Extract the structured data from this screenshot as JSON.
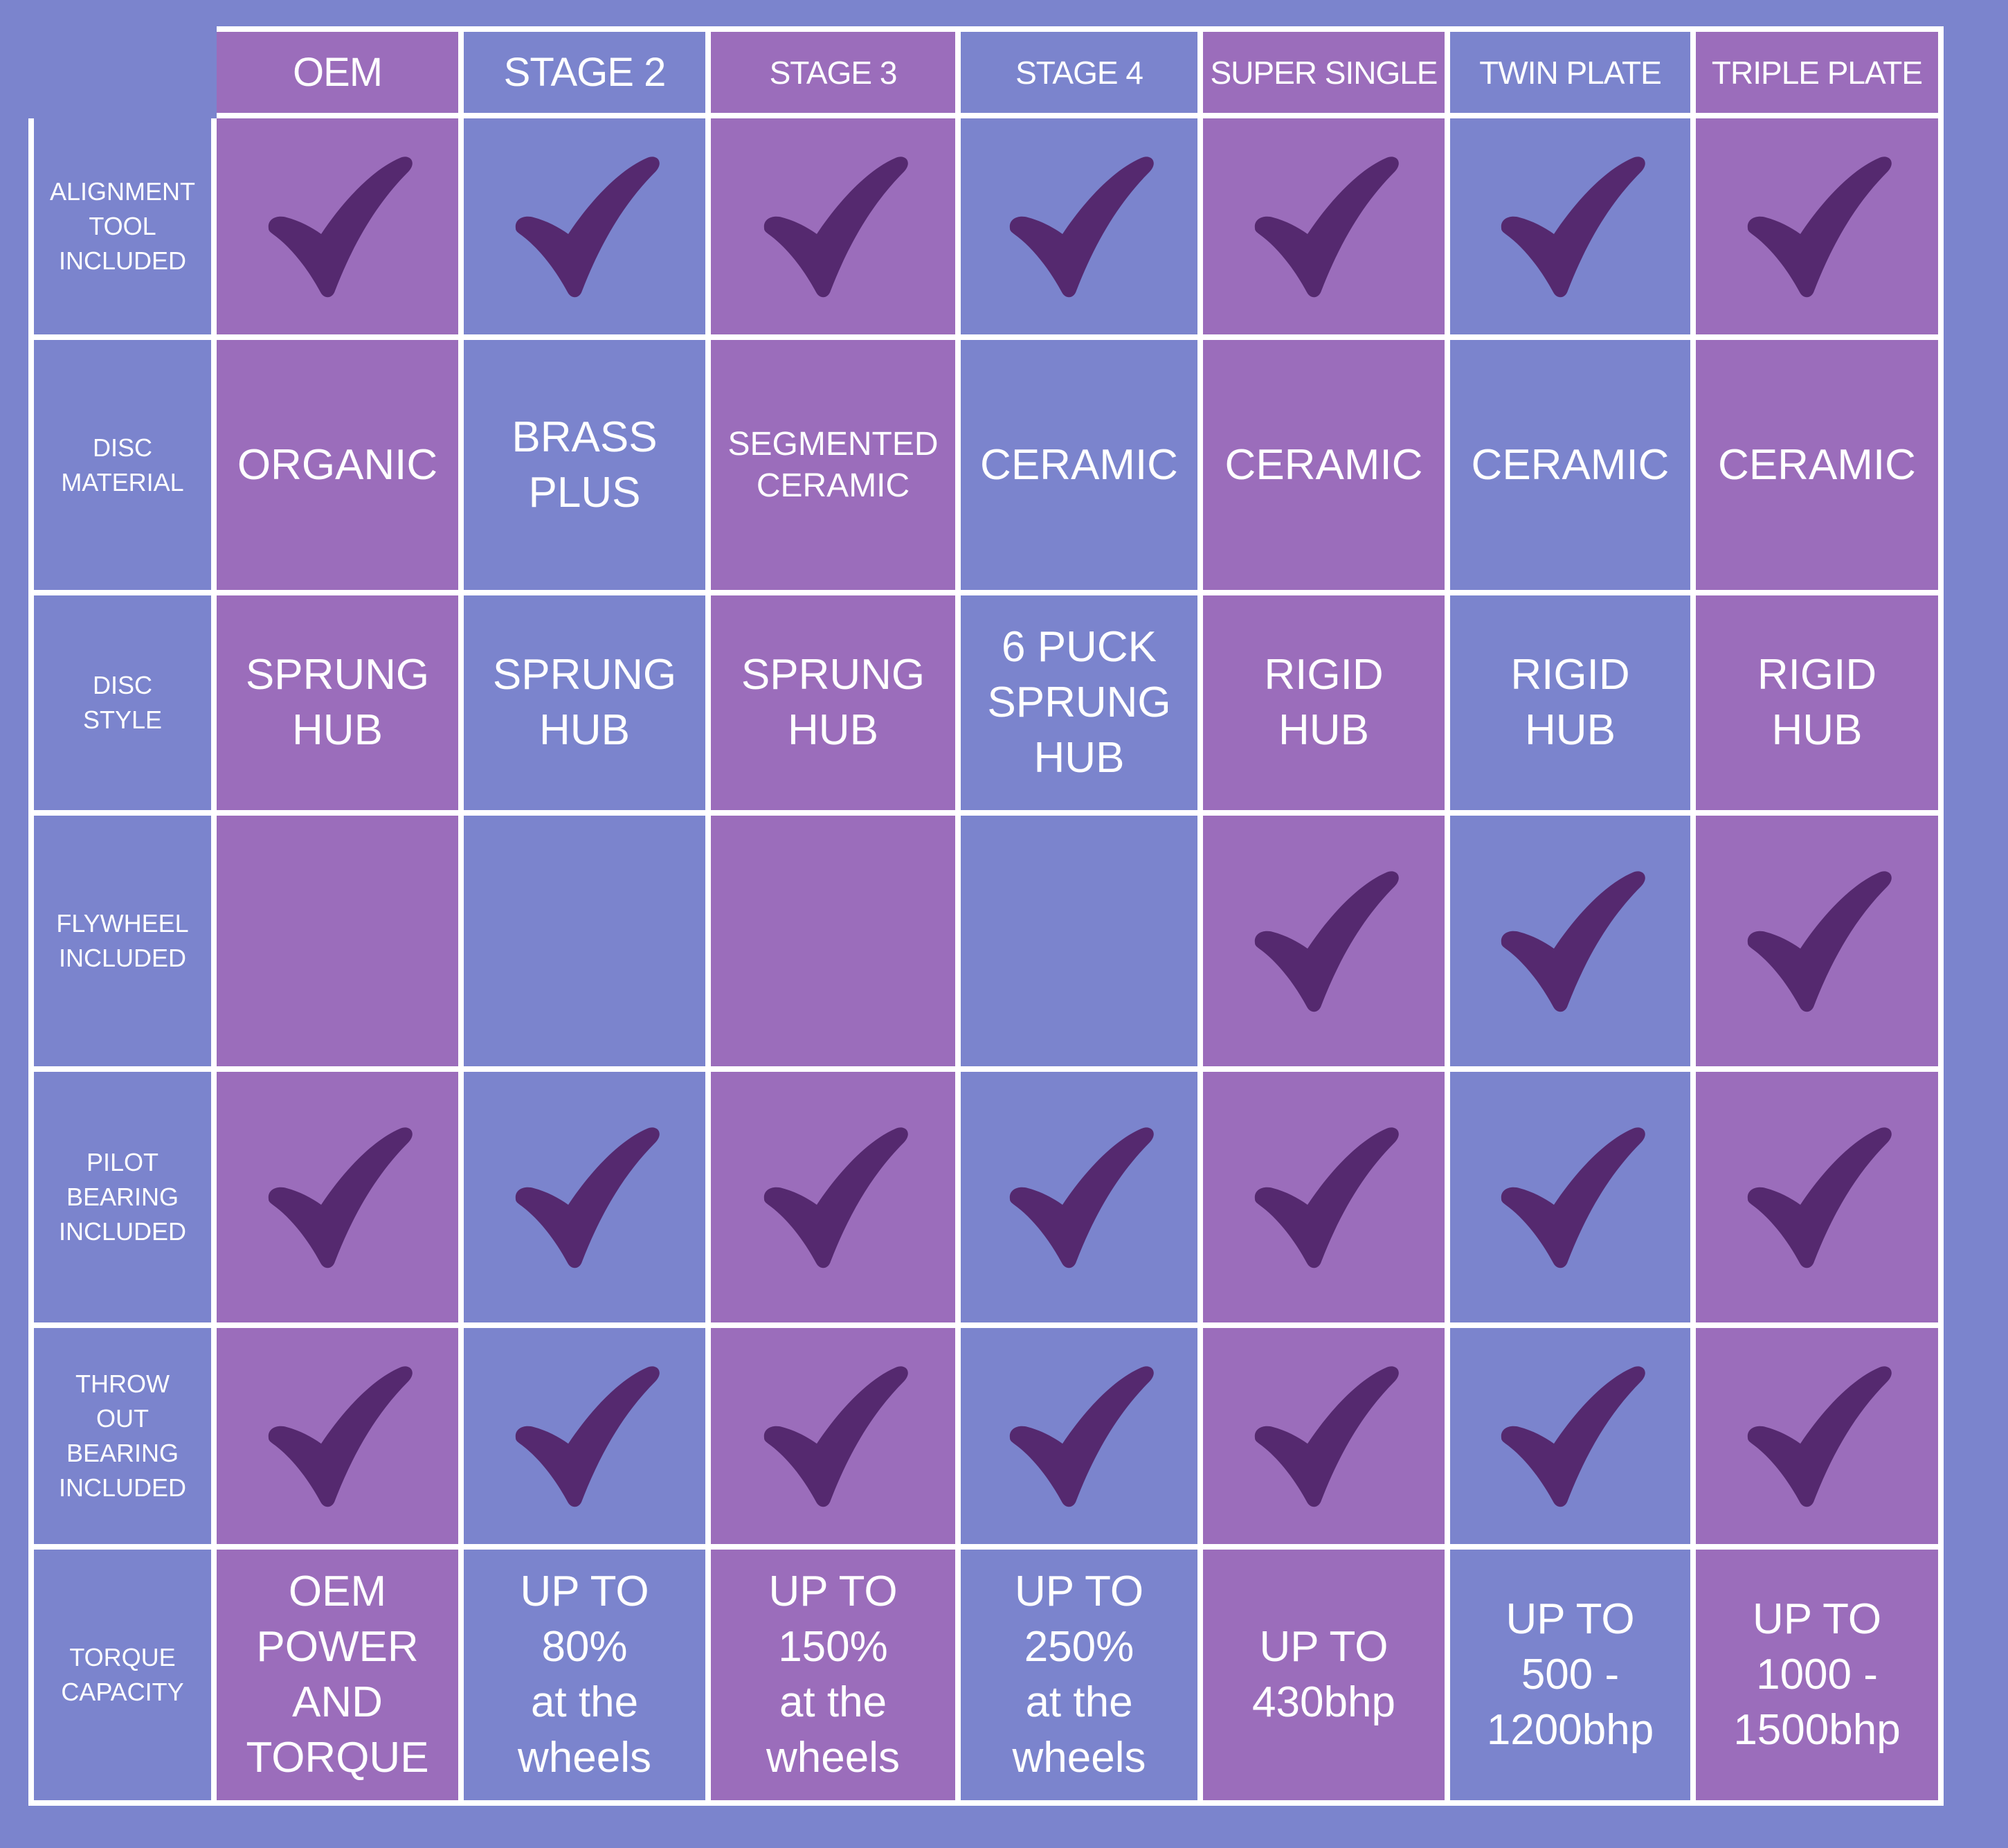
{
  "colors": {
    "background": "#7b84cd",
    "cell_purple": "#9b6dbb",
    "cell_blue": "#7b84cd",
    "grid_lines": "#ffffff",
    "checkmark": "#55296f",
    "text": "#ffffff"
  },
  "columns": [
    {
      "label": "OEM"
    },
    {
      "label": "STAGE 2"
    },
    {
      "label": "STAGE 3"
    },
    {
      "label": "STAGE 4"
    },
    {
      "label": "SUPER SINGLE"
    },
    {
      "label": "TWIN PLATE"
    },
    {
      "label": "TRIPLE PLATE"
    }
  ],
  "rows": [
    {
      "label": "ALIGNMENT\nTOOL\nINCLUDED",
      "cells": [
        "check-icon",
        "check-icon",
        "check-icon",
        "check-icon",
        "check-icon",
        "check-icon",
        "check-icon"
      ]
    },
    {
      "label": "DISC\nMATERIAL",
      "cells": [
        "ORGANIC",
        "BRASS\nPLUS",
        "SEGMENTED\nCERAMIC",
        "CERAMIC",
        "CERAMIC",
        "CERAMIC",
        "CERAMIC"
      ]
    },
    {
      "label": "DISC\nSTYLE",
      "cells": [
        "SPRUNG\nHUB",
        "SPRUNG\nHUB",
        "SPRUNG\nHUB",
        "6 PUCK\nSPRUNG\nHUB",
        "RIGID\nHUB",
        "RIGID\nHUB",
        "RIGID\nHUB"
      ]
    },
    {
      "label": "FLYWHEEL\nINCLUDED",
      "cells": [
        "",
        "",
        "",
        "",
        "check-icon",
        "check-icon",
        "check-icon"
      ]
    },
    {
      "label": "PILOT\nBEARING\nINCLUDED",
      "cells": [
        "check-icon",
        "check-icon",
        "check-icon",
        "check-icon",
        "check-icon",
        "check-icon",
        "check-icon"
      ]
    },
    {
      "label": "THROW\nOUT\nBEARING\nINCLUDED",
      "cells": [
        "check-icon",
        "check-icon",
        "check-icon",
        "check-icon",
        "check-icon",
        "check-icon",
        "check-icon"
      ]
    },
    {
      "label": "TORQUE\nCAPACITY",
      "cells": [
        "OEM\nPOWER\nAND\nTORQUE",
        "UP TO\n80%\nat the\nwheels",
        "UP TO\n150%\nat the\nwheels",
        "UP TO\n250%\nat the\nwheels",
        "UP TO\n430bhp",
        "UP TO\n500 -\n1200bhp",
        "UP TO\n1000 -\n1500bhp"
      ]
    }
  ]
}
